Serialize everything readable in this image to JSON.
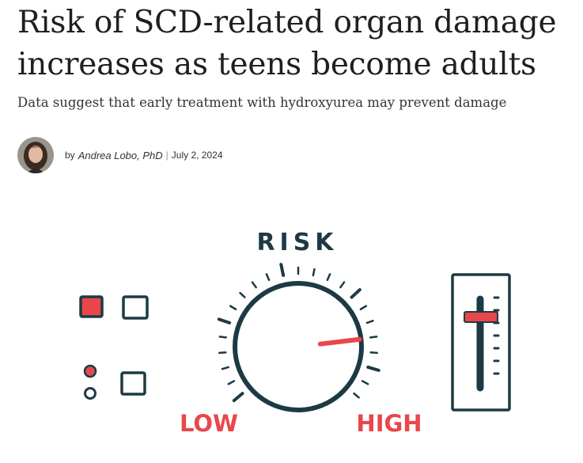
{
  "article": {
    "headline": "Risk of SCD-related organ damage increases as teens become adults",
    "subheadline": "Data suggest that early treatment with hydroxyurea may prevent damage",
    "byline": {
      "by": "by",
      "author": "Andrea Lobo, PhD",
      "separator": "|",
      "date": "July 2, 2024"
    }
  },
  "illustration": {
    "dial_title": "RISK",
    "low_label": "LOW",
    "high_label": "HIGH",
    "dial_level": 0.82,
    "slider_level": 0.2,
    "colors": {
      "ink": "#1d3a44",
      "accent": "#e8474b"
    }
  }
}
